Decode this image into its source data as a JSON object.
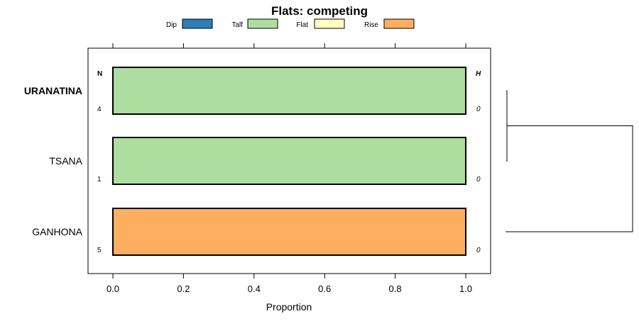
{
  "chart_data": {
    "type": "bar",
    "title": "Flats: competing",
    "xlabel": "Proportion",
    "ylabel": "",
    "xlim": [
      -0.07,
      1.07
    ],
    "x_ticks": [
      "0.0",
      "0.2",
      "0.4",
      "0.6",
      "0.8",
      "1.0"
    ],
    "x_tick_values": [
      0,
      0.2,
      0.4,
      0.6,
      0.8,
      1.0
    ],
    "n_header": "N",
    "h_header": "H",
    "legend": [
      {
        "name": "Dip",
        "color": "#2c7fb8"
      },
      {
        "name": "Talf",
        "color": "#addd9f"
      },
      {
        "name": "Flat",
        "color": "#ffffbf"
      },
      {
        "name": "Rise",
        "color": "#fdae61"
      }
    ],
    "categories": [
      {
        "name": "URANATINA",
        "bold": true,
        "n": "4",
        "h": "0",
        "segments": [
          {
            "series": "Talf",
            "value": 1.0,
            "color": "#addd9f"
          }
        ]
      },
      {
        "name": "TSANA",
        "bold": false,
        "n": "1",
        "h": "0",
        "segments": [
          {
            "series": "Talf",
            "value": 1.0,
            "color": "#addd9f"
          }
        ]
      },
      {
        "name": "GANHONA",
        "bold": false,
        "n": "5",
        "h": "0",
        "segments": [
          {
            "series": "Rise",
            "value": 1.0,
            "color": "#fdae61"
          }
        ]
      }
    ],
    "dendrogram": {
      "merges": [
        {
          "join": [
            "URANATINA",
            "TSANA"
          ],
          "height": 0.0
        },
        {
          "join": [
            [
              "URANATINA",
              "TSANA"
            ],
            "GANHONA"
          ],
          "height": 1.0
        }
      ]
    }
  }
}
